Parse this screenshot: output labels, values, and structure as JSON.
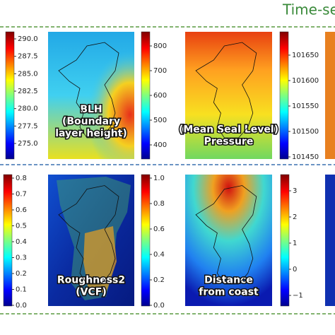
{
  "header": {
    "title": "Time-se"
  },
  "panels": [
    {
      "label": [
        "BLH",
        "(Boundary",
        "layer height)"
      ],
      "colorbar_ticks": [
        "290.0",
        "287.5",
        "285.0",
        "282.5",
        "280.0",
        "277.5",
        "275.0"
      ]
    },
    {
      "label": [
        "(Mean Seal Level)",
        "Pressure"
      ],
      "colorbar_ticks": [
        "800",
        "700",
        "600",
        "500",
        "400"
      ]
    },
    {
      "label": [],
      "colorbar_ticks": [
        "101650",
        "101600",
        "101550",
        "101500",
        "101450"
      ]
    },
    {
      "label": [
        "Roughness2",
        "(VCF)"
      ],
      "colorbar_ticks": [
        "0.8",
        "0.7",
        "0.6",
        "0.5",
        "0.4",
        "0.3",
        "0.2",
        "0.1",
        "0.0"
      ]
    },
    {
      "label": [
        "Distance",
        "from coast"
      ],
      "colorbar_ticks": [
        "1.0",
        "0.8",
        "0.6",
        "0.4",
        "0.2",
        "0.0"
      ]
    },
    {
      "label": [],
      "colorbar_ticks": [
        "3",
        "2",
        "1",
        "0",
        "−1"
      ]
    }
  ]
}
